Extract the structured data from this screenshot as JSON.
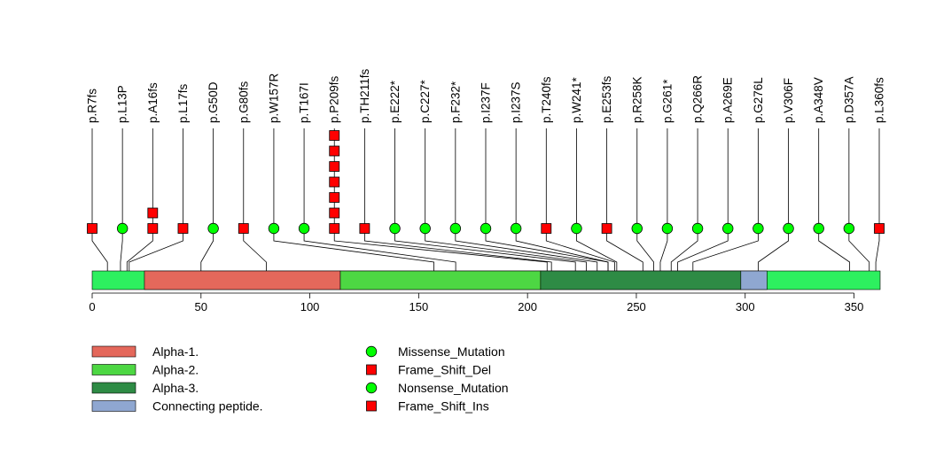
{
  "chart_data": {
    "type": "lollipop",
    "x_axis": {
      "min": 0,
      "max": 362,
      "ticks": [
        0,
        50,
        100,
        150,
        200,
        250,
        300,
        350
      ]
    },
    "protein_length": 362,
    "domains": [
      {
        "name": "Alpha-1.",
        "start": 24,
        "end": 114,
        "color": "#e4685b"
      },
      {
        "name": "Alpha-2.",
        "start": 114,
        "end": 206,
        "color": "#4dd743"
      },
      {
        "name": "Alpha-3.",
        "start": 206,
        "end": 298,
        "color": "#2e8b45"
      },
      {
        "name": "Connecting peptide.",
        "start": 298,
        "end": 310,
        "color": "#8fa7d1"
      }
    ],
    "backbone_color": "#2df05f",
    "mutation_types": [
      {
        "name": "Missense_Mutation",
        "shape": "circle",
        "color": "#00ff00"
      },
      {
        "name": "Frame_Shift_Del",
        "shape": "square",
        "color": "#ff0000"
      },
      {
        "name": "Nonsense_Mutation",
        "shape": "circle",
        "color": "#00ff00"
      },
      {
        "name": "Frame_Shift_Ins",
        "shape": "square",
        "color": "#ff0000"
      }
    ],
    "mutations": [
      {
        "label": "p.R7fs",
        "position": 7,
        "count": 1,
        "shape": "square"
      },
      {
        "label": "p.L13P",
        "position": 13,
        "count": 1,
        "shape": "circle"
      },
      {
        "label": "p.A16fs",
        "position": 16,
        "count": 2,
        "shape": "square"
      },
      {
        "label": "p.L17fs",
        "position": 17,
        "count": 1,
        "shape": "square"
      },
      {
        "label": "p.G50D",
        "position": 50,
        "count": 1,
        "shape": "circle"
      },
      {
        "label": "p.G80fs",
        "position": 80,
        "count": 1,
        "shape": "square"
      },
      {
        "label": "p.W157R",
        "position": 157,
        "count": 1,
        "shape": "circle"
      },
      {
        "label": "p.T167I",
        "position": 167,
        "count": 1,
        "shape": "circle"
      },
      {
        "label": "p.P209fs",
        "position": 209,
        "count": 7,
        "shape": "square"
      },
      {
        "label": "p.TH211fs",
        "position": 211,
        "count": 1,
        "shape": "square"
      },
      {
        "label": "p.E222*",
        "position": 222,
        "count": 1,
        "shape": "circle"
      },
      {
        "label": "p.C227*",
        "position": 227,
        "count": 1,
        "shape": "circle"
      },
      {
        "label": "p.F232*",
        "position": 232,
        "count": 1,
        "shape": "circle"
      },
      {
        "label": "p.I237F",
        "position": 237,
        "count": 1,
        "shape": "circle"
      },
      {
        "label": "p.I237S",
        "position": 237,
        "count": 1,
        "shape": "circle"
      },
      {
        "label": "p.T240fs",
        "position": 240,
        "count": 1,
        "shape": "square"
      },
      {
        "label": "p.W241*",
        "position": 241,
        "count": 1,
        "shape": "circle"
      },
      {
        "label": "p.E253fs",
        "position": 253,
        "count": 1,
        "shape": "square"
      },
      {
        "label": "p.R258K",
        "position": 258,
        "count": 1,
        "shape": "circle"
      },
      {
        "label": "p.G261*",
        "position": 261,
        "count": 1,
        "shape": "circle"
      },
      {
        "label": "p.Q266R",
        "position": 266,
        "count": 1,
        "shape": "circle"
      },
      {
        "label": "p.A269E",
        "position": 269,
        "count": 1,
        "shape": "circle"
      },
      {
        "label": "p.G276L",
        "position": 276,
        "count": 1,
        "shape": "circle"
      },
      {
        "label": "p.V306F",
        "position": 306,
        "count": 1,
        "shape": "circle"
      },
      {
        "label": "p.A348V",
        "position": 348,
        "count": 1,
        "shape": "circle"
      },
      {
        "label": "p.D357A",
        "position": 357,
        "count": 1,
        "shape": "circle"
      },
      {
        "label": "p.L360fs",
        "position": 360,
        "count": 1,
        "shape": "square"
      }
    ]
  }
}
